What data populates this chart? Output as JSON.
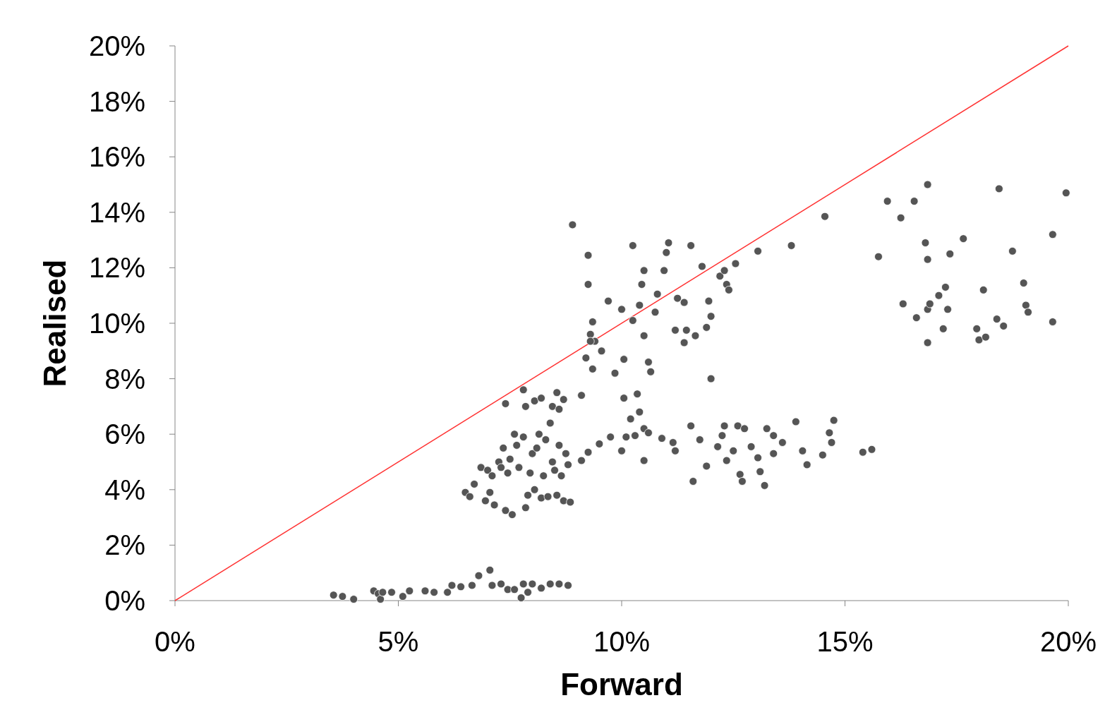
{
  "chart_data": {
    "type": "scatter",
    "xlabel": "Forward",
    "ylabel": "Realised",
    "xlim": [
      0,
      20
    ],
    "xticks": [
      {
        "value": 0,
        "label": "0%"
      },
      {
        "value": 5,
        "label": "5%"
      },
      {
        "value": 10,
        "label": "10%"
      },
      {
        "value": 15,
        "label": "15%"
      },
      {
        "value": 20,
        "label": "20%"
      }
    ],
    "ylim": [
      0,
      20
    ],
    "yticks": [
      {
        "value": 0,
        "label": "0%"
      },
      {
        "value": 2,
        "label": "2%"
      },
      {
        "value": 4,
        "label": "4%"
      },
      {
        "value": 6,
        "label": "6%"
      },
      {
        "value": 8,
        "label": "8%"
      },
      {
        "value": 10,
        "label": "10%"
      },
      {
        "value": 12,
        "label": "12%"
      },
      {
        "value": 14,
        "label": "14%"
      },
      {
        "value": 16,
        "label": "16%"
      },
      {
        "value": 18,
        "label": "18%"
      },
      {
        "value": 20,
        "label": "20%"
      }
    ],
    "grid": false,
    "series": [
      {
        "color": "#555555",
        "marker": "circle",
        "x": [
          3.55,
          3.75,
          4.0,
          4.45,
          4.55,
          4.6,
          4.65,
          4.85,
          5.1,
          5.25,
          5.6,
          5.8,
          6.1,
          6.2,
          6.4,
          6.65,
          6.8,
          7.05,
          7.1,
          7.3,
          7.45,
          7.6,
          7.75,
          7.8,
          7.9,
          8.0,
          8.2,
          8.4,
          8.6,
          8.8,
          6.5,
          6.6,
          6.7,
          6.85,
          6.95,
          7.0,
          7.05,
          7.1,
          7.15,
          7.25,
          7.3,
          7.35,
          7.4,
          7.45,
          7.5,
          7.55,
          7.6,
          7.65,
          7.7,
          7.8,
          7.85,
          7.9,
          7.95,
          8.0,
          8.05,
          8.1,
          8.15,
          8.2,
          8.25,
          8.3,
          8.35,
          8.4,
          8.45,
          8.5,
          8.55,
          8.6,
          8.65,
          8.7,
          8.75,
          8.8,
          8.85,
          7.4,
          7.8,
          7.85,
          8.05,
          8.2,
          8.45,
          8.55,
          8.6,
          8.7,
          9.1,
          9.1,
          9.25,
          9.5,
          9.75,
          10.0,
          10.1,
          10.3,
          10.5,
          10.5,
          10.6,
          10.9,
          11.15,
          11.2,
          11.55,
          11.6,
          11.75,
          11.9,
          12.15,
          12.25,
          12.3,
          12.35,
          12.5,
          12.6,
          12.65,
          12.7,
          12.75,
          12.9,
          13.05,
          13.1,
          13.2,
          13.25,
          13.4,
          13.6,
          13.4,
          13.9,
          14.05,
          14.15,
          14.5,
          14.65,
          14.75,
          14.7,
          15.4,
          15.6,
          9.35,
          9.3,
          9.4,
          9.3,
          9.2,
          9.35,
          9.55,
          9.7,
          9.85,
          10.0,
          10.05,
          10.05,
          10.2,
          10.25,
          10.35,
          10.4,
          10.4,
          10.5,
          10.6,
          10.65,
          10.75,
          10.8,
          10.95,
          11.0,
          11.05,
          11.2,
          11.25,
          11.4,
          11.4,
          11.45,
          11.65,
          11.8,
          11.9,
          12.0,
          11.95,
          12.0,
          12.2,
          12.3,
          12.35,
          12.4,
          12.55,
          13.05,
          13.8,
          14.55,
          10.5,
          10.45,
          10.25,
          9.25,
          9.25,
          8.9,
          11.55,
          15.75,
          15.95,
          16.25,
          16.3,
          16.55,
          16.6,
          16.8,
          16.85,
          16.85,
          16.85,
          16.9,
          16.85,
          17.1,
          17.2,
          17.25,
          17.3,
          17.35,
          17.65,
          17.95,
          18.0,
          18.1,
          18.15,
          18.4,
          18.45,
          18.55,
          18.75,
          19.0,
          19.05,
          19.1,
          19.65,
          19.65,
          19.95
        ],
        "values": [
          0.2,
          0.15,
          0.05,
          0.35,
          0.25,
          0.05,
          0.3,
          0.3,
          0.15,
          0.35,
          0.35,
          0.3,
          0.3,
          0.55,
          0.5,
          0.55,
          0.9,
          1.1,
          0.55,
          0.6,
          0.4,
          0.4,
          0.1,
          0.6,
          0.3,
          0.6,
          0.45,
          0.6,
          0.6,
          0.55,
          3.9,
          3.75,
          4.2,
          4.8,
          3.6,
          4.7,
          3.9,
          4.5,
          3.45,
          5.0,
          4.8,
          5.5,
          3.25,
          4.6,
          5.1,
          3.1,
          6.0,
          5.6,
          4.8,
          5.9,
          3.35,
          3.8,
          4.6,
          5.3,
          4.0,
          5.5,
          6.0,
          3.7,
          4.5,
          5.8,
          3.75,
          6.4,
          5.0,
          4.7,
          3.8,
          5.6,
          4.5,
          3.6,
          5.3,
          4.9,
          3.55,
          7.1,
          7.6,
          7.0,
          7.2,
          7.3,
          7.0,
          7.5,
          6.9,
          7.25,
          7.4,
          5.05,
          5.35,
          5.65,
          5.9,
          5.4,
          5.9,
          5.95,
          6.2,
          5.05,
          6.05,
          5.85,
          5.7,
          5.4,
          6.3,
          4.3,
          5.8,
          4.85,
          5.55,
          5.95,
          6.3,
          5.05,
          5.4,
          6.3,
          4.55,
          4.3,
          6.2,
          5.55,
          5.15,
          4.65,
          4.15,
          6.2,
          5.95,
          5.7,
          5.3,
          6.45,
          5.4,
          4.9,
          5.25,
          6.05,
          6.5,
          5.7,
          5.35,
          5.45,
          10.05,
          9.6,
          9.35,
          9.35,
          8.75,
          8.35,
          9.0,
          10.8,
          8.2,
          10.5,
          8.7,
          7.3,
          6.55,
          10.1,
          7.45,
          6.8,
          10.65,
          9.55,
          8.6,
          8.25,
          10.4,
          11.05,
          11.9,
          12.55,
          12.9,
          9.75,
          10.9,
          10.75,
          9.3,
          9.75,
          9.55,
          12.05,
          9.85,
          10.25,
          10.8,
          8.0,
          11.7,
          11.9,
          11.4,
          11.2,
          12.15,
          12.6,
          12.8,
          13.85,
          11.9,
          11.4,
          12.8,
          12.45,
          11.4,
          13.55,
          12.8,
          12.4,
          14.4,
          13.8,
          10.7,
          14.4,
          10.2,
          12.9,
          15.0,
          12.3,
          10.5,
          10.7,
          9.3,
          11.0,
          9.8,
          11.3,
          10.5,
          12.5,
          13.05,
          9.8,
          9.4,
          11.2,
          9.5,
          10.15,
          14.85,
          9.9,
          12.6,
          11.45,
          10.65,
          10.4,
          10.05,
          13.2,
          14.7
        ]
      },
      {
        "type": "line",
        "color": "#ff3333",
        "line_style": "solid",
        "marker": "none",
        "x": [
          0,
          20
        ],
        "values": [
          0,
          20
        ]
      }
    ]
  }
}
